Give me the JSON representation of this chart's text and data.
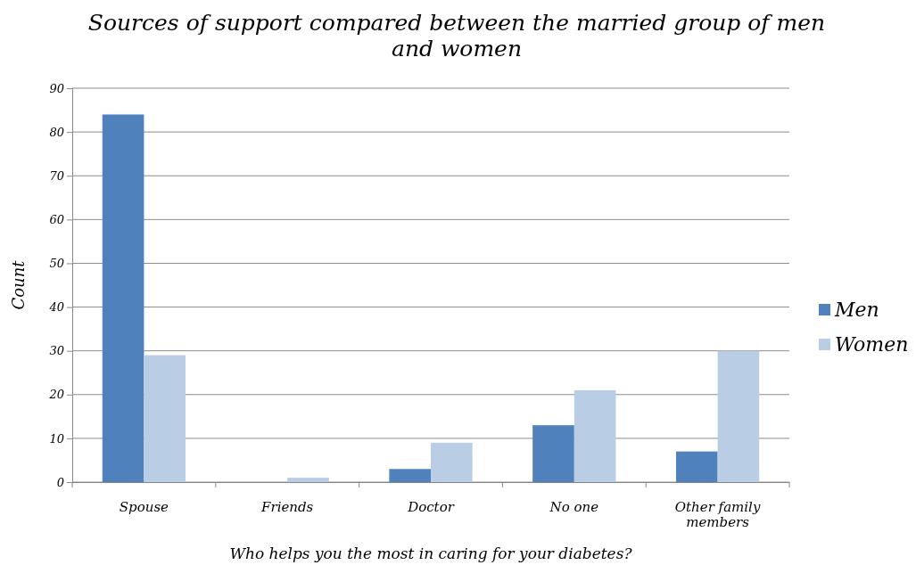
{
  "chart_data": {
    "type": "bar",
    "title": "Sources of support compared between the married group of men and women",
    "xlabel": "Who helps you the most in caring for your diabetes?",
    "ylabel": "Count",
    "categories": [
      "Spouse",
      "Friends",
      "Doctor",
      "No one",
      "Other family members"
    ],
    "series": [
      {
        "name": "Men",
        "color": "#4f81bd",
        "values": [
          84,
          0,
          3,
          13,
          7
        ]
      },
      {
        "name": "Women",
        "color": "#b9cde5",
        "values": [
          29,
          1,
          9,
          21,
          30
        ]
      }
    ],
    "ylim": [
      0,
      90
    ],
    "yticks": [
      0,
      10,
      20,
      30,
      40,
      50,
      60,
      70,
      80,
      90
    ],
    "grid": "y",
    "legend": "right"
  }
}
